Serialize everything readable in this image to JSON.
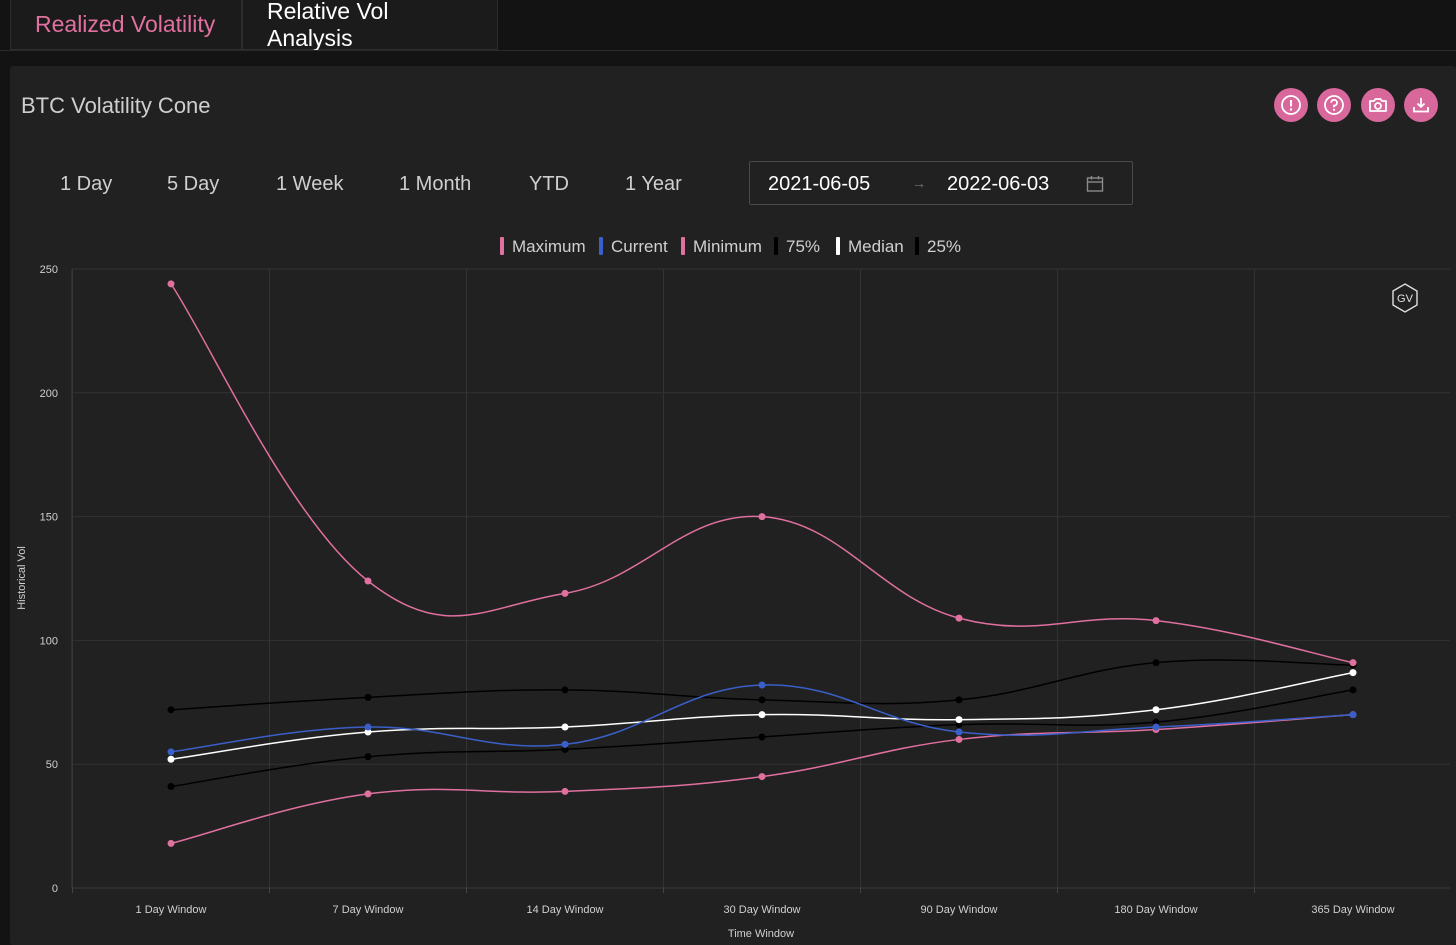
{
  "tabs": [
    {
      "label": "Realized Volatility",
      "active": true
    },
    {
      "label": "Relative Vol Analysis",
      "active": false
    }
  ],
  "panel": {
    "title": "BTC Volatility Cone",
    "icons": [
      "alert-icon",
      "help-icon",
      "camera-icon",
      "download-icon"
    ]
  },
  "ranges": [
    "1 Day",
    "5 Day",
    "1 Week",
    "1 Month",
    "YTD",
    "1 Year"
  ],
  "date_range": {
    "start": "2021-06-05",
    "separator": "→",
    "end": "2022-06-03",
    "icon": "calendar-icon"
  },
  "watermark": "GV",
  "colors": {
    "accent": "#e0709f",
    "maximum": "#e0709f",
    "current": "#3a5fc8",
    "minimum": "#e0709f",
    "p75": "#000000",
    "median": "#ffffff",
    "p25": "#000000"
  },
  "chart_data": {
    "type": "line",
    "categories": [
      "1 Day Window",
      "7 Day Window",
      "14 Day Window",
      "30 Day Window",
      "90 Day Window",
      "180 Day Window",
      "365 Day Window"
    ],
    "series": [
      {
        "name": "Maximum",
        "key": "maximum",
        "values": [
          244,
          124,
          119,
          150,
          109,
          108,
          91
        ]
      },
      {
        "name": "Current",
        "key": "current",
        "values": [
          55,
          65,
          58,
          82,
          63,
          65,
          70
        ]
      },
      {
        "name": "Minimum",
        "key": "minimum",
        "values": [
          18,
          38,
          39,
          45,
          60,
          64,
          70
        ]
      },
      {
        "name": "75%",
        "key": "p75",
        "values": [
          72,
          77,
          80,
          76,
          76,
          91,
          90
        ]
      },
      {
        "name": "Median",
        "key": "median",
        "values": [
          52,
          63,
          65,
          70,
          68,
          72,
          87
        ]
      },
      {
        "name": "25%",
        "key": "p25",
        "values": [
          41,
          53,
          56,
          61,
          66,
          67,
          80
        ]
      }
    ],
    "xlabel": "Time Window",
    "ylabel": "Historical Vol",
    "ylim": [
      0,
      250
    ],
    "yticks": [
      0,
      50,
      100,
      150,
      200,
      250
    ],
    "grid": true,
    "legend": "top-center"
  }
}
